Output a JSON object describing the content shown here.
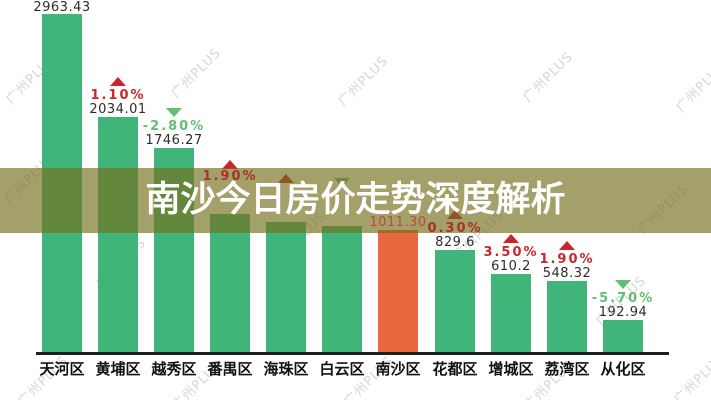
{
  "title": {
    "text": "南沙今日房价走势深度解析"
  },
  "watermark": {
    "text": "广州PLUS"
  },
  "chart_data": {
    "type": "bar",
    "title": "南沙今日房价走势深度解析",
    "categories": [
      "天河区",
      "黄埔区",
      "越秀区",
      "番禺区",
      "海珠区",
      "白云区",
      "南沙区",
      "花都区",
      "增城区",
      "荔湾区",
      "从化区"
    ],
    "values": [
      2963.43,
      2034.01,
      1746.27,
      1150,
      1080,
      1040,
      1011.3,
      829.6,
      610.2,
      548.32,
      192.94
    ],
    "value_labels": [
      "2963.43",
      "2034.01",
      "1746.27",
      "",
      "",
      "",
      "1011.30",
      "829.6",
      "610.2",
      "548.32",
      "192.94"
    ],
    "changes": [
      "",
      "1.10%",
      "-2.80%",
      "1.90%",
      "",
      "",
      "",
      "0.30%",
      "3.50%",
      "1.90%",
      "-5.70%"
    ],
    "directions": [
      "none",
      "up",
      "down",
      "up",
      "up",
      "down",
      "none",
      "up",
      "up",
      "up",
      "down"
    ],
    "highlight_index": 6,
    "values_estimated_hidden_by_banner": [
      3,
      4,
      5
    ],
    "xlabel": "",
    "ylabel": "",
    "ylim": [
      0,
      3100
    ],
    "grid": false,
    "legend": "none",
    "colors": {
      "bar": "#41b579",
      "highlight_bar": "#e8673f",
      "up": "#c9252b",
      "down": "#62bf74",
      "value_text": "#2d2d2d",
      "highlight_value_text": "#c04a33",
      "over_banner_red": "#a8322a",
      "axis": "#1f1f1f",
      "banner_bg": "rgba(117,111,29,0.66)",
      "title_text": "#ffffff",
      "watermark": "#d6d6d6"
    }
  }
}
